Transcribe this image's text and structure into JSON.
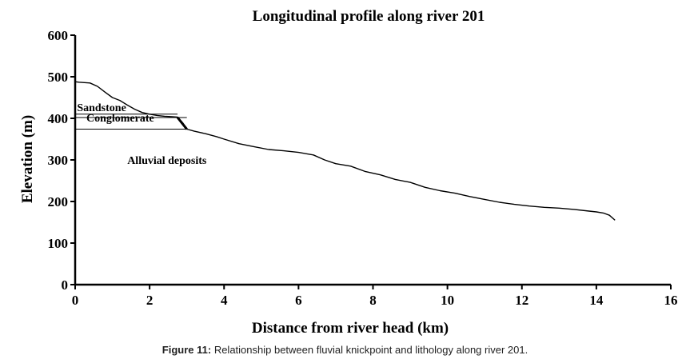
{
  "chart_data": {
    "type": "line",
    "title": "Longitudinal profile along river 201",
    "xlabel": "Distance from river head (km)",
    "ylabel": "Elevation (m)",
    "xlim": [
      0,
      16
    ],
    "ylim": [
      0,
      600
    ],
    "xticks": [
      0,
      2,
      4,
      6,
      8,
      10,
      12,
      14,
      16
    ],
    "yticks": [
      0,
      100,
      200,
      300,
      400,
      500,
      600
    ],
    "grid": false,
    "series": [
      {
        "name": "",
        "x": [
          0,
          0.1,
          0.4,
          0.6,
          0.8,
          1.0,
          1.2,
          1.4,
          1.6,
          1.8,
          2.0,
          2.2,
          2.4,
          2.6,
          2.75,
          2.9,
          3.0,
          3.2,
          3.5,
          3.8,
          4.0,
          4.4,
          4.8,
          5.2,
          5.6,
          6.0,
          6.4,
          6.7,
          7.0,
          7.4,
          7.8,
          8.2,
          8.6,
          9.0,
          9.4,
          9.8,
          10.2,
          10.6,
          11.0,
          11.4,
          11.8,
          12.2,
          12.6,
          13.0,
          13.4,
          13.8,
          14.0,
          14.2,
          14.35,
          14.5
        ],
        "y": [
          488,
          487,
          485,
          477,
          463,
          450,
          443,
          432,
          422,
          414,
          410,
          407,
          405,
          404,
          403,
          388,
          374,
          369,
          363,
          356,
          350,
          339,
          332,
          325,
          322,
          318,
          312,
          300,
          291,
          285,
          272,
          264,
          253,
          246,
          234,
          226,
          220,
          212,
          205,
          198,
          193,
          189,
          186,
          184,
          181,
          177,
          175,
          172,
          167,
          155
        ]
      }
    ],
    "layers": [
      {
        "label": "Sandstone",
        "top": 410,
        "bottom": 402,
        "x_end": 2.75
      },
      {
        "label": "Conglomerate",
        "top": 402,
        "bottom": 374,
        "x_end": 3.0
      }
    ],
    "annotations": [
      {
        "text": "Sandstone",
        "x": 0.05,
        "y": 417
      },
      {
        "text": "Conglomerate",
        "x": 0.3,
        "y": 392
      },
      {
        "text": "Alluvial deposits",
        "x": 1.4,
        "y": 290
      }
    ]
  },
  "caption": {
    "label": "Figure 11:",
    "text": "Relationship between fluvial knickpoint and lithology along river 201."
  }
}
